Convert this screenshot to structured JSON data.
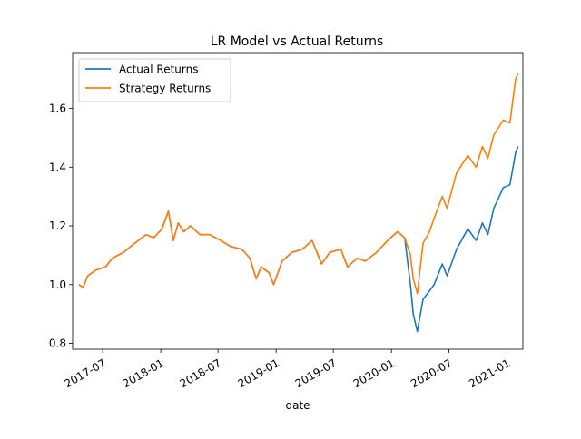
{
  "chart_data": {
    "type": "line",
    "title": "LR Model vs Actual Returns",
    "xlabel": "date",
    "ylabel": "",
    "xlim": [
      "2017-03-28",
      "2021-02-20"
    ],
    "ylim": [
      0.78,
      1.79
    ],
    "x_ticks": [
      "2017-07",
      "2018-01",
      "2018-07",
      "2019-01",
      "2019-07",
      "2020-01",
      "2020-07",
      "2021-01"
    ],
    "y_ticks": [
      "0.8",
      "1.0",
      "1.2",
      "1.4",
      "1.6"
    ],
    "grid": false,
    "legend": {
      "position": "top-left"
    },
    "series": [
      {
        "name": "Actual Returns",
        "color": "#1f77b4",
        "points": [
          [
            "2017-04-17",
            1.0
          ],
          [
            "2017-04-30",
            0.99
          ],
          [
            "2017-05-15",
            1.03
          ],
          [
            "2017-06-10",
            1.05
          ],
          [
            "2017-07-10",
            1.06
          ],
          [
            "2017-08-01",
            1.09
          ],
          [
            "2017-09-05",
            1.11
          ],
          [
            "2017-10-10",
            1.14
          ],
          [
            "2017-11-15",
            1.17
          ],
          [
            "2017-12-10",
            1.16
          ],
          [
            "2018-01-05",
            1.19
          ],
          [
            "2018-01-25",
            1.25
          ],
          [
            "2018-02-10",
            1.15
          ],
          [
            "2018-02-25",
            1.21
          ],
          [
            "2018-03-15",
            1.18
          ],
          [
            "2018-04-05",
            1.2
          ],
          [
            "2018-05-05",
            1.17
          ],
          [
            "2018-06-05",
            1.17
          ],
          [
            "2018-07-10",
            1.15
          ],
          [
            "2018-08-10",
            1.13
          ],
          [
            "2018-09-15",
            1.12
          ],
          [
            "2018-10-10",
            1.09
          ],
          [
            "2018-10-30",
            1.02
          ],
          [
            "2018-11-15",
            1.06
          ],
          [
            "2018-12-10",
            1.04
          ],
          [
            "2018-12-24",
            1.0
          ],
          [
            "2019-01-20",
            1.08
          ],
          [
            "2019-02-20",
            1.11
          ],
          [
            "2019-03-25",
            1.12
          ],
          [
            "2019-04-25",
            1.15
          ],
          [
            "2019-05-25",
            1.07
          ],
          [
            "2019-06-20",
            1.11
          ],
          [
            "2019-07-25",
            1.12
          ],
          [
            "2019-08-15",
            1.06
          ],
          [
            "2019-09-15",
            1.09
          ],
          [
            "2019-10-10",
            1.08
          ],
          [
            "2019-11-15",
            1.11
          ],
          [
            "2019-12-20",
            1.15
          ],
          [
            "2020-01-20",
            1.18
          ],
          [
            "2020-02-12",
            1.16
          ],
          [
            "2020-03-01",
            1.0
          ],
          [
            "2020-03-10",
            0.9
          ],
          [
            "2020-03-23",
            0.84
          ],
          [
            "2020-04-10",
            0.95
          ],
          [
            "2020-05-15",
            1.0
          ],
          [
            "2020-06-10",
            1.07
          ],
          [
            "2020-06-25",
            1.03
          ],
          [
            "2020-07-25",
            1.12
          ],
          [
            "2020-08-30",
            1.19
          ],
          [
            "2020-09-25",
            1.15
          ],
          [
            "2020-10-15",
            1.21
          ],
          [
            "2020-11-01",
            1.17
          ],
          [
            "2020-11-20",
            1.26
          ],
          [
            "2020-12-20",
            1.33
          ],
          [
            "2021-01-10",
            1.34
          ],
          [
            "2021-01-28",
            1.45
          ],
          [
            "2021-02-05",
            1.47
          ]
        ]
      },
      {
        "name": "Strategy Returns",
        "color": "#ff7f0e",
        "points": [
          [
            "2017-04-17",
            1.0
          ],
          [
            "2017-04-30",
            0.99
          ],
          [
            "2017-05-15",
            1.03
          ],
          [
            "2017-06-10",
            1.05
          ],
          [
            "2017-07-10",
            1.06
          ],
          [
            "2017-08-01",
            1.09
          ],
          [
            "2017-09-05",
            1.11
          ],
          [
            "2017-10-10",
            1.14
          ],
          [
            "2017-11-15",
            1.17
          ],
          [
            "2017-12-10",
            1.16
          ],
          [
            "2018-01-05",
            1.19
          ],
          [
            "2018-01-25",
            1.25
          ],
          [
            "2018-02-10",
            1.15
          ],
          [
            "2018-02-25",
            1.21
          ],
          [
            "2018-03-15",
            1.18
          ],
          [
            "2018-04-05",
            1.2
          ],
          [
            "2018-05-05",
            1.17
          ],
          [
            "2018-06-05",
            1.17
          ],
          [
            "2018-07-10",
            1.15
          ],
          [
            "2018-08-10",
            1.13
          ],
          [
            "2018-09-15",
            1.12
          ],
          [
            "2018-10-10",
            1.09
          ],
          [
            "2018-10-30",
            1.02
          ],
          [
            "2018-11-15",
            1.06
          ],
          [
            "2018-12-10",
            1.04
          ],
          [
            "2018-12-24",
            1.0
          ],
          [
            "2019-01-20",
            1.08
          ],
          [
            "2019-02-20",
            1.11
          ],
          [
            "2019-03-25",
            1.12
          ],
          [
            "2019-04-25",
            1.15
          ],
          [
            "2019-05-25",
            1.07
          ],
          [
            "2019-06-20",
            1.11
          ],
          [
            "2019-07-25",
            1.12
          ],
          [
            "2019-08-15",
            1.06
          ],
          [
            "2019-09-15",
            1.09
          ],
          [
            "2019-10-10",
            1.08
          ],
          [
            "2019-11-15",
            1.11
          ],
          [
            "2019-12-20",
            1.15
          ],
          [
            "2020-01-20",
            1.18
          ],
          [
            "2020-02-12",
            1.16
          ],
          [
            "2020-03-01",
            1.1
          ],
          [
            "2020-03-10",
            1.02
          ],
          [
            "2020-03-23",
            0.97
          ],
          [
            "2020-04-10",
            1.14
          ],
          [
            "2020-04-30",
            1.18
          ],
          [
            "2020-05-20",
            1.24
          ],
          [
            "2020-06-10",
            1.3
          ],
          [
            "2020-06-25",
            1.26
          ],
          [
            "2020-07-25",
            1.38
          ],
          [
            "2020-08-30",
            1.44
          ],
          [
            "2020-09-25",
            1.4
          ],
          [
            "2020-10-15",
            1.47
          ],
          [
            "2020-11-01",
            1.43
          ],
          [
            "2020-11-20",
            1.51
          ],
          [
            "2020-12-20",
            1.56
          ],
          [
            "2021-01-10",
            1.55
          ],
          [
            "2021-01-28",
            1.7
          ],
          [
            "2021-02-05",
            1.72
          ]
        ]
      }
    ]
  }
}
